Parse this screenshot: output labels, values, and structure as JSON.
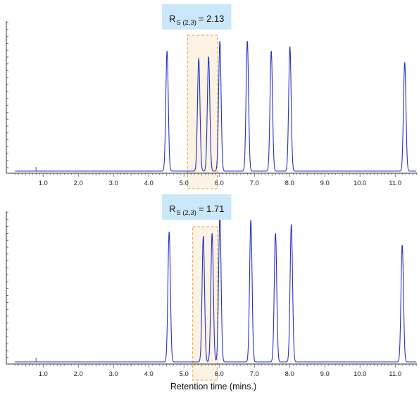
{
  "chart_data": [
    {
      "type": "line",
      "xlim": [
        0.2,
        11.6
      ],
      "x_ticks": [
        1.0,
        2.0,
        3.0,
        4.0,
        5.0,
        6.0,
        7.0,
        8.0,
        9.0,
        10.0,
        11.0
      ],
      "x_tick_labels": [
        "1.0",
        "2.0",
        "3.0",
        "4.0",
        "5.0",
        "6.0",
        "7.0",
        "8.0",
        "9.0",
        "10.0",
        "11.0"
      ],
      "annotation": {
        "main": "R",
        "subscript": "S (2,3)",
        "value": "= 2.13"
      },
      "highlight_range": [
        5.1,
        5.95
      ],
      "marker_x": 0.8,
      "peaks": [
        {
          "rt": 4.52,
          "height": 0.84
        },
        {
          "rt": 5.42,
          "height": 0.79
        },
        {
          "rt": 5.7,
          "height": 0.8
        },
        {
          "rt": 6.02,
          "height": 0.91
        },
        {
          "rt": 6.8,
          "height": 0.91
        },
        {
          "rt": 7.48,
          "height": 0.84
        },
        {
          "rt": 8.01,
          "height": 0.87
        },
        {
          "rt": 11.27,
          "height": 0.76
        }
      ],
      "color": "#2233cc"
    },
    {
      "type": "line",
      "xlim": [
        0.2,
        11.6
      ],
      "x_ticks": [
        1.0,
        2.0,
        3.0,
        4.0,
        5.0,
        6.0,
        7.0,
        8.0,
        9.0,
        10.0,
        11.0
      ],
      "x_tick_labels": [
        "1.0",
        "2.0",
        "3.0",
        "4.0",
        "5.0",
        "6.0",
        "7.0",
        "8.0",
        "9.0",
        "10.0",
        "11.0"
      ],
      "annotation": {
        "main": "R",
        "subscript": "S (2,3)",
        "value": "= 1.71"
      },
      "highlight_range": [
        5.25,
        5.95
      ],
      "marker_x": 0.8,
      "peaks": [
        {
          "rt": 4.58,
          "height": 0.88
        },
        {
          "rt": 5.55,
          "height": 0.85
        },
        {
          "rt": 5.8,
          "height": 0.87
        },
        {
          "rt": 6.02,
          "height": 0.99
        },
        {
          "rt": 6.9,
          "height": 0.96
        },
        {
          "rt": 7.6,
          "height": 0.87
        },
        {
          "rt": 8.05,
          "height": 0.93
        },
        {
          "rt": 11.2,
          "height": 0.79
        }
      ],
      "color": "#2233cc"
    }
  ],
  "xlabel": "Retention time (mins.)"
}
